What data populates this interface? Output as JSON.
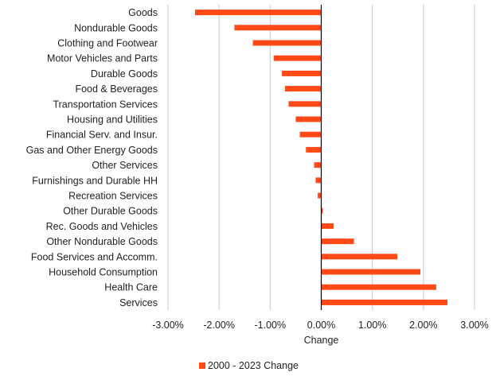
{
  "chart_data": {
    "type": "bar",
    "orientation": "horizontal",
    "categories": [
      "Goods",
      "Nondurable Goods",
      "Clothing and Footwear",
      "Motor Vehicles and Parts",
      "Durable Goods",
      "Food & Beverages",
      "Transportation Services",
      "Housing and Utilities",
      "Financial Serv. and Insur.",
      "Gas and Other Energy Goods",
      "Other Services",
      "Furnishings and Durable HH",
      "Recreation Services",
      "Other Durable Goods",
      "Rec. Goods and Vehicles",
      "Other Nondurable Goods",
      "Food Services and Accomm.",
      "Household Consumption",
      "Health Care",
      "Services"
    ],
    "series": [
      {
        "name": "2000 - 2023 Change",
        "color": "#ff4a17",
        "values": [
          -2.47,
          -1.7,
          -1.34,
          -0.93,
          -0.77,
          -0.71,
          -0.64,
          -0.5,
          -0.42,
          -0.3,
          -0.14,
          -0.11,
          -0.07,
          0.03,
          0.24,
          0.64,
          1.49,
          1.94,
          2.25,
          2.47
        ]
      }
    ],
    "xlabel": "Change",
    "ylabel": "",
    "xlim": [
      -3.0,
      3.0
    ],
    "xticks": [
      -3.0,
      -2.0,
      -1.0,
      0.0,
      1.0,
      2.0,
      3.0
    ],
    "xtick_labels": [
      "-3.00%",
      "-2.00%",
      "-1.00%",
      "0.00%",
      "1.00%",
      "2.00%",
      "3.00%"
    ],
    "grid": "vertical",
    "legend_position": "bottom-center"
  }
}
